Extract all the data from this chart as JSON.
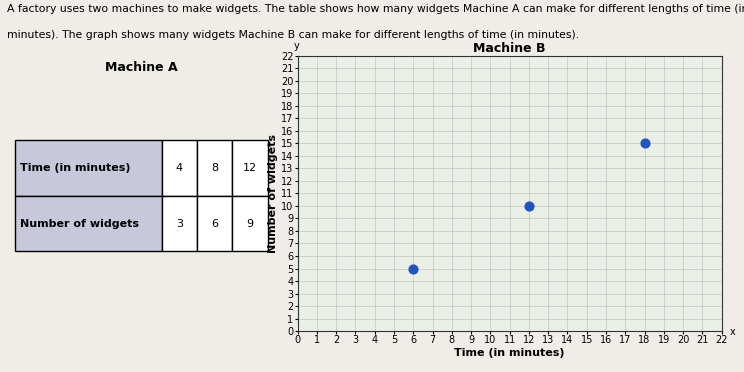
{
  "description_line1": "A factory uses two machines to make widgets. The table shows how many widgets Machine A can make for different lengths of time (in",
  "description_line2": "minutes). The graph shows many widgets Machine B can make for different lengths of time (in minutes).",
  "table_title": "Machine A",
  "table_row1_label": "Time (in minutes)",
  "table_row2_label": "Number of widgets",
  "table_time": [
    4,
    8,
    12
  ],
  "table_widgets": [
    3,
    6,
    9
  ],
  "graph_title": "Machine B",
  "graph_xlabel": "Time (in minutes)",
  "graph_ylabel": "Number of widgets",
  "scatter_x": [
    6,
    12,
    18
  ],
  "scatter_y": [
    5,
    10,
    15
  ],
  "scatter_color": "#2255bb",
  "scatter_size": 40,
  "xlim": [
    0,
    22
  ],
  "ylim": [
    0,
    22
  ],
  "background_color": "#f0ede8",
  "graph_bg_color": "#eaf0e8",
  "table_label_bg": "#c8c8dc",
  "table_value_bg": "#ffffff",
  "grid_color": "#999999",
  "text_color": "#000000",
  "desc_fontsize": 7.8,
  "title_fontsize": 9,
  "label_fontsize": 8,
  "tick_fontsize": 7,
  "table_fontsize": 8
}
